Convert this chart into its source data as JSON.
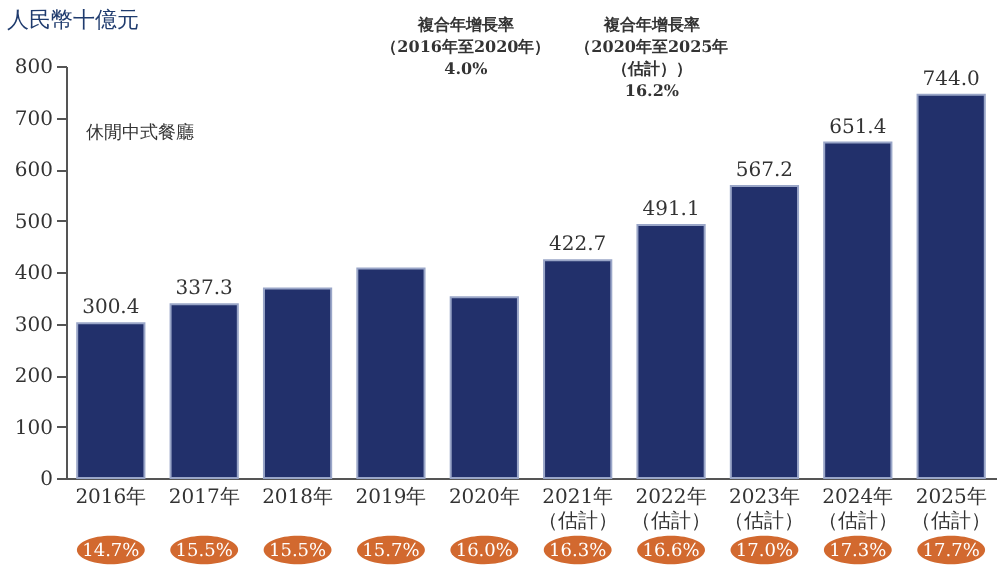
{
  "chart_data": {
    "type": "bar",
    "ylabel": "人民幣十億元",
    "categories": [
      "2016年",
      "2017年",
      "2018年",
      "2019年",
      "2020年",
      "2021年（估計）",
      "2022年（估計）",
      "2023年（估計）",
      "2024年（估計）",
      "2025年（估計）"
    ],
    "series": [
      {
        "name": "休閒中式餐廳",
        "color": "#22306b",
        "values": [
          300.4,
          337.3,
          368,
          407,
          351,
          422.7,
          491.1,
          567.2,
          651.4,
          744.0
        ],
        "value_labels": [
          "300.4",
          "337.3",
          null,
          null,
          null,
          "422.7",
          "491.1",
          "567.2",
          "651.4",
          "744.0"
        ]
      }
    ],
    "ylim": [
      0,
      800
    ],
    "yticks": [
      0,
      100,
      200,
      300,
      400,
      500,
      600,
      700,
      800
    ],
    "grid": false,
    "annotations": [
      "複合年增長率（2016年至2020年）4.0%",
      "複合年增長率（2020年至2025年（估計））16.2%",
      "14.7%",
      "15.5%",
      "15.5%",
      "15.7%",
      "16.0%",
      "16.3%",
      "16.6%",
      "17.0%",
      "17.3%",
      "17.7%"
    ]
  }
}
